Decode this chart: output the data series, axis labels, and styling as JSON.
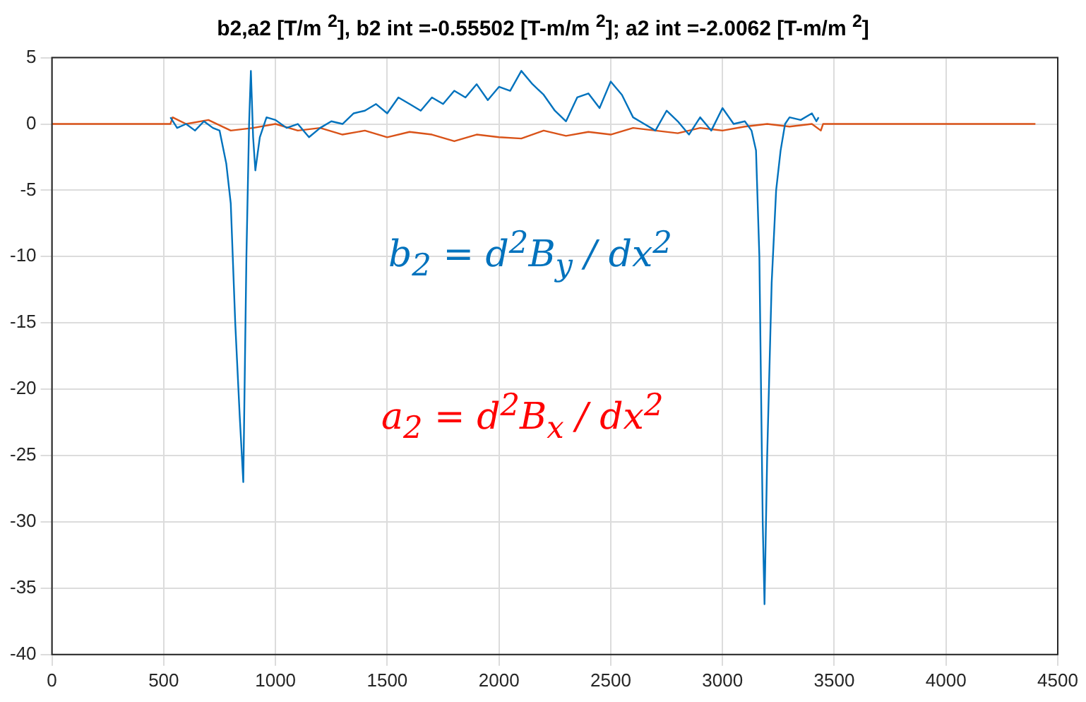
{
  "chart_data": {
    "type": "line",
    "title": "b2,a2 [T/m $^{2}$], b2 int =-0.55502 [T-m/m $^{2}$]; a2 int =-2.0062 [T-m/m $^{2}$]",
    "annotations": [
      "b$_{2}$ = d$^{2}$B$_{y}$ / dx$^{2}$",
      "a$_{2}$ = d$^{2}$B$_{x}$ / dx$^{2}$"
    ],
    "xlim": [
      0,
      4500
    ],
    "xticks": [
      0,
      500,
      1000,
      1500,
      2000,
      2500,
      3000,
      3500,
      4000,
      4500
    ],
    "ylim": [
      -40,
      5
    ],
    "yticks": [
      -40,
      -35,
      -30,
      -25,
      -20,
      -15,
      -10,
      -5,
      0,
      5
    ],
    "grid": true,
    "legend": false,
    "marker": "none",
    "line_style": "solid",
    "series": [
      {
        "color": "#0072bd",
        "x": [
          530,
          560,
          600,
          640,
          680,
          720,
          750,
          780,
          800,
          820,
          840,
          856,
          870,
          882,
          890,
          900,
          910,
          930,
          960,
          1000,
          1050,
          1100,
          1150,
          1200,
          1250,
          1300,
          1350,
          1400,
          1450,
          1500,
          1550,
          1600,
          1650,
          1700,
          1750,
          1800,
          1850,
          1900,
          1950,
          2000,
          2050,
          2100,
          2150,
          2200,
          2250,
          2300,
          2350,
          2400,
          2450,
          2500,
          2550,
          2600,
          2650,
          2700,
          2750,
          2800,
          2850,
          2900,
          2950,
          3000,
          3050,
          3100,
          3130,
          3150,
          3165,
          3180,
          3188,
          3200,
          3220,
          3240,
          3260,
          3280,
          3300,
          3350,
          3400,
          3420,
          3430
        ],
        "values": [
          0.5,
          -0.3,
          0,
          -0.5,
          0.2,
          -0.3,
          -0.5,
          -3,
          -6,
          -15,
          -22,
          -27,
          -10,
          0,
          4,
          -1,
          -3.5,
          -1,
          0.5,
          0.3,
          -0.3,
          0,
          -1,
          -0.3,
          0.2,
          0,
          0.8,
          1,
          1.5,
          0.8,
          2,
          1.5,
          1,
          2,
          1.5,
          2.5,
          2,
          3,
          1.8,
          2.8,
          2.5,
          4,
          3,
          2.2,
          1,
          0.2,
          2,
          2.3,
          1.2,
          3.2,
          2.2,
          0.5,
          0,
          -0.5,
          1,
          0.2,
          -0.8,
          0.5,
          -0.5,
          1.2,
          0,
          0.2,
          -0.5,
          -2,
          -10,
          -30,
          -36.2,
          -25,
          -12,
          -5,
          -2,
          0,
          0.5,
          0.3,
          0.8,
          0.2,
          0.5
        ]
      },
      {
        "color": "#d95319",
        "x": [
          0,
          530,
          540,
          600,
          700,
          800,
          900,
          1000,
          1100,
          1200,
          1300,
          1400,
          1500,
          1600,
          1700,
          1800,
          1900,
          2000,
          2100,
          2200,
          2300,
          2400,
          2500,
          2600,
          2700,
          2800,
          2900,
          3000,
          3100,
          3200,
          3300,
          3400,
          3440,
          3450,
          4400
        ],
        "values": [
          0,
          0,
          0.5,
          0,
          0.3,
          -0.5,
          -0.3,
          0,
          -0.5,
          -0.3,
          -0.8,
          -0.5,
          -1,
          -0.6,
          -0.8,
          -1.3,
          -0.8,
          -1,
          -1.1,
          -0.5,
          -0.9,
          -0.6,
          -0.8,
          -0.3,
          -0.5,
          -0.7,
          -0.3,
          -0.5,
          -0.2,
          0,
          -0.2,
          0,
          -0.5,
          0,
          0
        ]
      }
    ]
  }
}
